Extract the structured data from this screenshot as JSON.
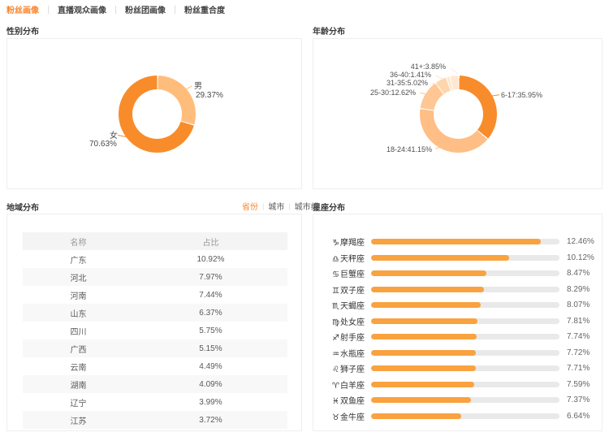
{
  "accent": "#F8832B",
  "top_tabs": {
    "items": [
      {
        "label": "粉丝画像",
        "active": true
      },
      {
        "label": "直播观众画像",
        "active": false
      },
      {
        "label": "粉丝团画像",
        "active": false
      },
      {
        "label": "粉丝重合度",
        "active": false
      }
    ]
  },
  "gender": {
    "title": "性别分布",
    "labels": {
      "male_name": "男",
      "male_pct": "29.37%",
      "female_name": "女",
      "female_pct": "70.63%"
    }
  },
  "age": {
    "title": "年龄分布",
    "labels_display": [
      "41+:3.85%",
      "36-40:1.41%",
      "31-35:5.02%",
      "25-30:12.62%",
      "18-24:41.15%",
      "6-17:35.95%"
    ]
  },
  "region": {
    "title": "地域分布",
    "tabs": [
      {
        "label": "省份",
        "active": true
      },
      {
        "label": "城市",
        "active": false
      },
      {
        "label": "城市线",
        "active": false
      }
    ],
    "table": {
      "headers": [
        "名称",
        "占比"
      ],
      "rows": [
        [
          "广东",
          "10.92%"
        ],
        [
          "河北",
          "7.97%"
        ],
        [
          "河南",
          "7.44%"
        ],
        [
          "山东",
          "6.37%"
        ],
        [
          "四川",
          "5.75%"
        ],
        [
          "广西",
          "5.15%"
        ],
        [
          "云南",
          "4.49%"
        ],
        [
          "湖南",
          "4.09%"
        ],
        [
          "辽宁",
          "3.99%"
        ],
        [
          "江苏",
          "3.72%"
        ]
      ]
    }
  },
  "zodiac": {
    "title": "星座分布"
  },
  "chart_data": [
    {
      "type": "pie",
      "title": "性别分布",
      "donut": true,
      "labels": [
        "男",
        "女"
      ],
      "values": [
        29.37,
        70.63
      ],
      "colors": [
        "#FFBD7C",
        "#F88C2B"
      ]
    },
    {
      "type": "pie",
      "title": "年龄分布",
      "donut": true,
      "labels": [
        "6-17",
        "18-24",
        "25-30",
        "31-35",
        "36-40",
        "41+"
      ],
      "values": [
        35.95,
        41.15,
        12.62,
        5.02,
        1.41,
        3.85
      ],
      "colors": [
        "#F88C2B",
        "#FFBE85",
        "#FFC794",
        "#FFD5AB",
        "#FFE3C7",
        "#FFE8D1"
      ]
    },
    {
      "type": "bar",
      "title": "星座分布",
      "orientation": "horizontal",
      "categories": [
        "摩羯座",
        "天秤座",
        "巨蟹座",
        "双子座",
        "天蝎座",
        "处女座",
        "射手座",
        "水瓶座",
        "狮子座",
        "白羊座",
        "双鱼座",
        "金牛座"
      ],
      "icons": [
        "♑",
        "♎",
        "♋",
        "♊",
        "♏",
        "♍",
        "♐",
        "♒",
        "♌",
        "♈",
        "♓",
        "♉"
      ],
      "values": [
        12.46,
        10.12,
        8.47,
        8.29,
        8.07,
        7.81,
        7.74,
        7.72,
        7.71,
        7.59,
        7.37,
        6.64
      ],
      "pct_labels": [
        "12.46%",
        "10.12%",
        "8.47%",
        "8.29%",
        "8.07%",
        "7.81%",
        "7.74%",
        "7.72%",
        "7.71%",
        "7.59%",
        "7.37%",
        "6.64%"
      ],
      "xlim": [
        0,
        13.85
      ],
      "bar_color": "#F9A240",
      "track_color": "#E9E9E9",
      "legend": "none",
      "grid": false
    }
  ]
}
